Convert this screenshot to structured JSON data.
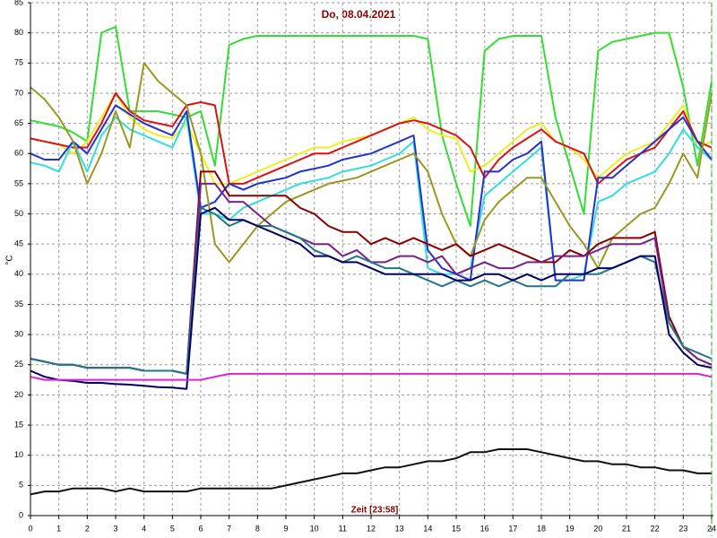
{
  "chart_data": {
    "type": "line",
    "title": "Do, 08.04.2021",
    "x_label": "Zeit [23:58]",
    "y_label": "°C",
    "grid": true,
    "xlim": [
      0,
      24
    ],
    "ylim": [
      0,
      85
    ],
    "xticks": [
      0,
      1,
      2,
      3,
      4,
      5,
      6,
      7,
      8,
      9,
      10,
      11,
      12,
      13,
      14,
      15,
      16,
      17,
      18,
      19,
      20,
      21,
      22,
      23,
      24
    ],
    "yticks": [
      0,
      5,
      10,
      15,
      20,
      25,
      30,
      35,
      40,
      45,
      50,
      55,
      60,
      65,
      70,
      75,
      80,
      85
    ],
    "x": [
      0,
      0.5,
      1,
      1.5,
      2,
      2.5,
      3,
      3.5,
      4,
      4.5,
      5,
      5.5,
      6,
      6.5,
      7,
      7.5,
      8,
      8.5,
      9,
      9.5,
      10,
      10.5,
      11,
      11.5,
      12,
      12.5,
      13,
      13.5,
      14,
      14.5,
      15,
      15.5,
      16,
      16.5,
      17,
      17.5,
      18,
      18.5,
      19,
      19.5,
      20,
      20.5,
      21,
      21.5,
      22,
      22.5,
      23,
      23.5,
      24
    ],
    "series": [
      {
        "color": "#33dd33",
        "values": [
          65.5,
          65,
          64.5,
          63.5,
          62,
          80,
          81,
          67,
          67,
          67,
          66.5,
          66,
          67,
          58,
          78,
          79,
          79.5,
          79.5,
          79.5,
          79.5,
          79.5,
          79.5,
          79.5,
          79.5,
          79.5,
          79.5,
          79.5,
          79.5,
          79,
          63,
          55,
          48,
          77,
          79,
          79.5,
          79.5,
          79.5,
          66,
          58,
          50,
          77,
          78.5,
          79,
          79.5,
          80,
          80,
          71,
          58,
          72
        ]
      },
      {
        "color": "#eeee22",
        "values": [
          62.5,
          62,
          61.5,
          60,
          62,
          66,
          70,
          66,
          64,
          63,
          62.5,
          65,
          60,
          55,
          55,
          56,
          57,
          58,
          59,
          60,
          61,
          61,
          62,
          62.5,
          63,
          64,
          65,
          66,
          64,
          63,
          62.5,
          57,
          58,
          60,
          62,
          64,
          65,
          62,
          61,
          59,
          56,
          58,
          60,
          61,
          62,
          65,
          68,
          61,
          62
        ]
      },
      {
        "color": "#dd1111",
        "values": [
          62.5,
          62,
          61.5,
          61,
          61,
          65,
          70,
          67,
          65.5,
          65,
          64.5,
          68,
          68.5,
          68,
          55,
          55,
          56,
          57,
          58,
          59,
          60,
          60,
          61,
          62,
          63,
          64,
          65,
          65.5,
          65,
          64,
          63,
          61,
          56,
          59,
          61,
          62.5,
          64,
          62,
          61,
          60,
          55,
          57,
          59,
          60,
          61,
          64,
          67,
          62,
          61
        ]
      },
      {
        "color": "#33dddd",
        "values": [
          58.5,
          58,
          57,
          62,
          57,
          63,
          66,
          64,
          63,
          62,
          61,
          66,
          50,
          50,
          49,
          51,
          52,
          53,
          54,
          55,
          55.5,
          56,
          57,
          57.5,
          58,
          59,
          60,
          62,
          41,
          40,
          40,
          41,
          53,
          55,
          57,
          59,
          61,
          39,
          39,
          40,
          52,
          53,
          55,
          56,
          57,
          60,
          64,
          61,
          59
        ]
      },
      {
        "color": "#2233cc",
        "values": [
          60,
          59,
          59,
          62,
          60,
          64,
          68,
          66.5,
          65,
          64,
          63,
          67,
          51,
          52,
          55,
          54,
          55,
          55.5,
          56,
          57,
          57.5,
          58,
          59,
          59.5,
          60,
          61,
          62,
          63,
          44,
          41,
          40,
          39,
          57,
          57,
          59,
          60,
          62,
          39,
          39,
          39,
          56,
          56,
          58,
          60,
          62,
          64,
          66,
          62,
          59
        ]
      },
      {
        "color": "#999922",
        "values": [
          71,
          69,
          66,
          62,
          55,
          60,
          67,
          61,
          75,
          72,
          70,
          68,
          60,
          45,
          42,
          45,
          48,
          50,
          52,
          53,
          54,
          55,
          55.5,
          56,
          57,
          58,
          59,
          60,
          57,
          50,
          45,
          43,
          49,
          52,
          54,
          56,
          56,
          52,
          48,
          45,
          41,
          46,
          48,
          50,
          51,
          55,
          60,
          56,
          70
        ]
      },
      {
        "color": "#880000",
        "values": [
          26,
          25.5,
          25,
          25,
          24.5,
          24.5,
          24.5,
          24.5,
          24,
          24,
          24,
          23.5,
          57,
          57,
          53,
          53,
          53,
          53,
          53,
          51,
          50,
          48,
          47,
          47,
          45,
          46,
          45,
          46,
          45,
          44,
          45,
          43,
          44,
          45,
          44,
          43,
          42,
          42,
          44,
          43,
          45,
          46,
          46,
          46,
          47,
          33,
          28,
          26,
          25
        ]
      },
      {
        "color": "#772288",
        "values": [
          26,
          25.5,
          25,
          25,
          24.5,
          24.5,
          24.5,
          24.5,
          24,
          24,
          24,
          23.5,
          55,
          55,
          52,
          52,
          50,
          48,
          47,
          46,
          45,
          45,
          43,
          44,
          42,
          42,
          43,
          43,
          42,
          43,
          40,
          41,
          42,
          41,
          41,
          42,
          42,
          43,
          43,
          43,
          44,
          45,
          45,
          45,
          46,
          32,
          28,
          26,
          25
        ]
      },
      {
        "color": "#227788",
        "values": [
          26,
          25.5,
          25,
          25,
          24.5,
          24.5,
          24.5,
          24.5,
          24,
          24,
          24,
          23.5,
          51,
          50,
          48,
          49,
          48,
          48,
          47,
          46,
          44,
          43,
          42,
          43,
          42,
          41,
          41,
          40,
          39,
          38,
          39,
          38,
          39,
          38,
          39,
          38,
          38,
          38,
          40,
          40,
          40,
          41,
          42,
          43,
          42,
          32,
          28,
          27,
          26
        ]
      },
      {
        "color": "#000066",
        "values": [
          24,
          23,
          22.5,
          22.3,
          22,
          22,
          21.8,
          21.7,
          21.5,
          21.3,
          21.2,
          21,
          50,
          51,
          49,
          49,
          48,
          47,
          46,
          45,
          43,
          43,
          42,
          42,
          41,
          40,
          40,
          40,
          40,
          40,
          39,
          39,
          40,
          40,
          39,
          40,
          39,
          40,
          40,
          40,
          41,
          41,
          42,
          43,
          43,
          30,
          27,
          25,
          24.5
        ]
      },
      {
        "color": "#dd22dd",
        "values": [
          23,
          22.5,
          22.5,
          22.5,
          22.5,
          22.5,
          22.5,
          22.5,
          22.5,
          22.5,
          22.5,
          22.5,
          22.5,
          23,
          23.5,
          23.5,
          23.5,
          23.5,
          23.5,
          23.5,
          23.5,
          23.5,
          23.5,
          23.5,
          23.5,
          23.5,
          23.5,
          23.5,
          23.5,
          23.5,
          23.5,
          23.5,
          23.5,
          23.5,
          23.5,
          23.5,
          23.5,
          23.5,
          23.5,
          23.5,
          23.5,
          23.5,
          23.5,
          23.5,
          23.5,
          23.5,
          23.5,
          23.5,
          23
        ]
      },
      {
        "color": "#111111",
        "values": [
          3.5,
          4,
          4,
          4.5,
          4.5,
          4.5,
          4,
          4.5,
          4,
          4,
          4,
          4,
          4.5,
          4.5,
          4.5,
          4.5,
          4.5,
          4.5,
          5,
          5.5,
          6,
          6.5,
          7,
          7,
          7.5,
          8,
          8,
          8.5,
          9,
          9,
          9.5,
          10.5,
          10.5,
          11,
          11,
          11,
          10.5,
          10,
          9.5,
          9,
          9,
          8.5,
          8.5,
          8,
          8,
          7.5,
          7.5,
          7,
          7
        ]
      }
    ]
  }
}
